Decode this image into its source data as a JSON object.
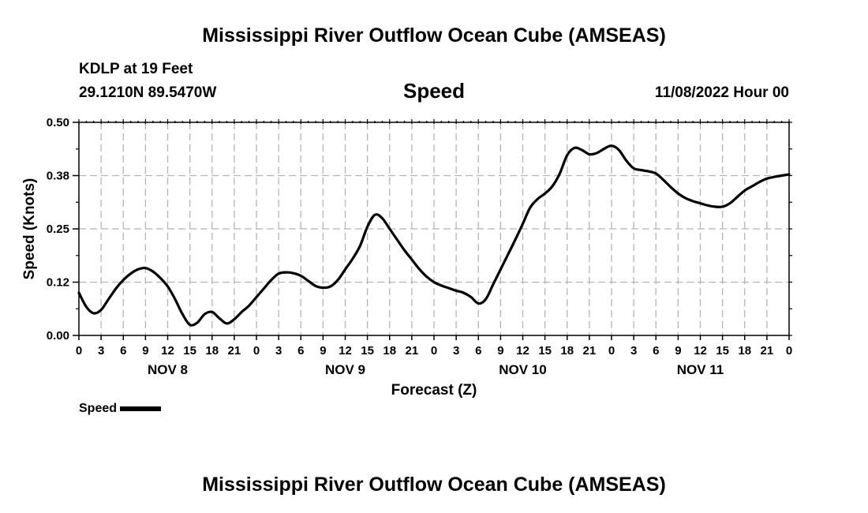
{
  "header": {
    "title": "Mississippi River Outflow Ocean Cube (AMSEAS)",
    "station": "KDLP at 19 Feet",
    "coords": "29.1210N  89.5470W",
    "subtitle": "Speed",
    "datetime": "11/08/2022 Hour 00"
  },
  "footer": {
    "title": "Mississippi River Outflow Ocean Cube (AMSEAS)"
  },
  "colors": {
    "line": "#000000",
    "grid": "#b4b4b4"
  },
  "chart_data": {
    "type": "line",
    "title": "Mississippi River Outflow Ocean Cube (AMSEAS)",
    "subtitle": "Speed",
    "xlabel": "Forecast (Z)",
    "ylabel": "Speed (Knots)",
    "ylim": [
      0,
      0.5
    ],
    "yticks": [
      "0.00",
      "0.12",
      "0.25",
      "0.38",
      "0.50"
    ],
    "xlim": [
      0,
      96
    ],
    "xtick_labels": [
      "0",
      "3",
      "6",
      "9",
      "12",
      "15",
      "18",
      "21",
      "0",
      "3",
      "6",
      "9",
      "12",
      "15",
      "18",
      "21",
      "0",
      "3",
      "6",
      "9",
      "12",
      "15",
      "18",
      "21",
      "0",
      "3",
      "6",
      "9",
      "12",
      "15",
      "18",
      "21",
      "0"
    ],
    "day_labels": [
      "NOV 8",
      "NOV 9",
      "NOV 10",
      "NOV 11"
    ],
    "grid": true,
    "legend": {
      "position": "bottom-left",
      "label": "Speed"
    },
    "series": [
      {
        "name": "Speed",
        "x": [
          0,
          1,
          2,
          3,
          4,
          5,
          6,
          7,
          8,
          9,
          10,
          11,
          12,
          13,
          14,
          15,
          16,
          17,
          18,
          19,
          20,
          21,
          22,
          23,
          24,
          25,
          26,
          27,
          28,
          29,
          30,
          31,
          32,
          33,
          34,
          35,
          36,
          37,
          38,
          39,
          40,
          41,
          42,
          43,
          44,
          45,
          46,
          47,
          48,
          49,
          50,
          51,
          52,
          53,
          54,
          55,
          56,
          57,
          58,
          59,
          60,
          61,
          62,
          63,
          64,
          65,
          66,
          67,
          68,
          69,
          70,
          71,
          72,
          73,
          74,
          75,
          76,
          77,
          78,
          79,
          80,
          81,
          82,
          83,
          84,
          85,
          86,
          87,
          88,
          89,
          90,
          91,
          92,
          93,
          94,
          95,
          96
        ],
        "y": [
          0.1,
          0.067,
          0.052,
          0.06,
          0.085,
          0.11,
          0.13,
          0.145,
          0.155,
          0.158,
          0.15,
          0.135,
          0.115,
          0.085,
          0.05,
          0.025,
          0.03,
          0.05,
          0.055,
          0.04,
          0.028,
          0.038,
          0.055,
          0.07,
          0.09,
          0.11,
          0.13,
          0.145,
          0.148,
          0.146,
          0.14,
          0.128,
          0.116,
          0.112,
          0.115,
          0.13,
          0.155,
          0.18,
          0.21,
          0.255,
          0.283,
          0.275,
          0.25,
          0.225,
          0.2,
          0.178,
          0.156,
          0.138,
          0.125,
          0.117,
          0.111,
          0.105,
          0.1,
          0.09,
          0.075,
          0.085,
          0.12,
          0.155,
          0.19,
          0.225,
          0.262,
          0.3,
          0.32,
          0.333,
          0.35,
          0.38,
          0.423,
          0.44,
          0.435,
          0.425,
          0.428,
          0.438,
          0.445,
          0.435,
          0.41,
          0.392,
          0.388,
          0.385,
          0.38,
          0.365,
          0.348,
          0.333,
          0.322,
          0.315,
          0.31,
          0.305,
          0.302,
          0.302,
          0.31,
          0.325,
          0.34,
          0.35,
          0.36,
          0.368,
          0.372,
          0.375,
          0.378
        ]
      }
    ]
  }
}
